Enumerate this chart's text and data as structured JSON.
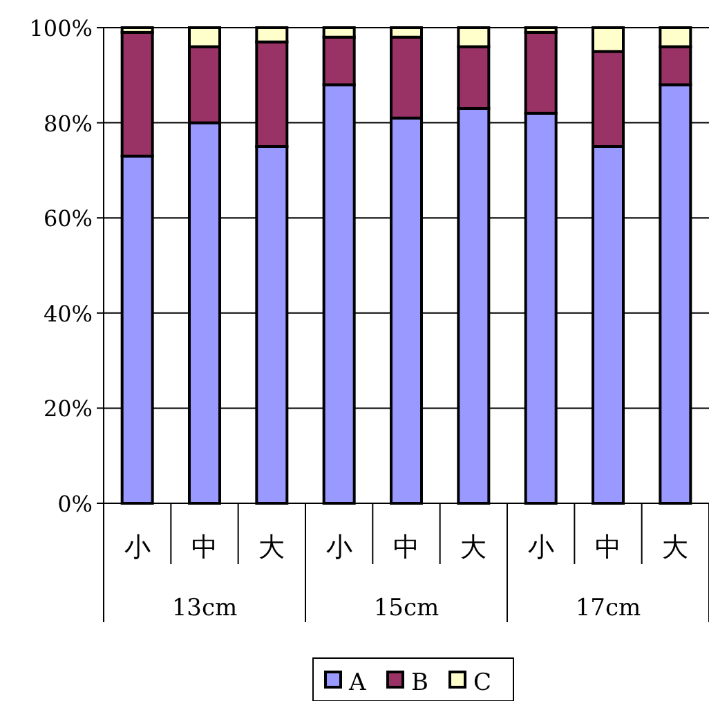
{
  "chart_data": {
    "type": "bar",
    "stacked": true,
    "categories": [
      "小",
      "中",
      "大",
      "小",
      "中",
      "大",
      "小",
      "中",
      "大"
    ],
    "series": [
      {
        "name": "A",
        "color": "#9999ff",
        "values": [
          73,
          80,
          75,
          88,
          81,
          83,
          82,
          75,
          88
        ]
      },
      {
        "name": "B",
        "color": "#993366",
        "values": [
          26,
          16,
          22,
          10,
          17,
          13,
          17,
          20,
          8
        ]
      },
      {
        "name": "C",
        "color": "#ffffcc",
        "values": [
          1,
          4,
          3,
          2,
          2,
          4,
          1,
          5,
          4
        ]
      }
    ],
    "ylim": [
      0,
      100
    ],
    "yticks": [
      {
        "value": 0,
        "label": "0%"
      },
      {
        "value": 20,
        "label": "20%"
      },
      {
        "value": 40,
        "label": "40%"
      },
      {
        "value": 60,
        "label": "60%"
      },
      {
        "value": 80,
        "label": "80%"
      },
      {
        "value": 100,
        "label": "100%"
      }
    ],
    "grid": "y",
    "legend": "bottom",
    "annotations": [
      "13cm",
      "15cm",
      "17cm"
    ]
  }
}
